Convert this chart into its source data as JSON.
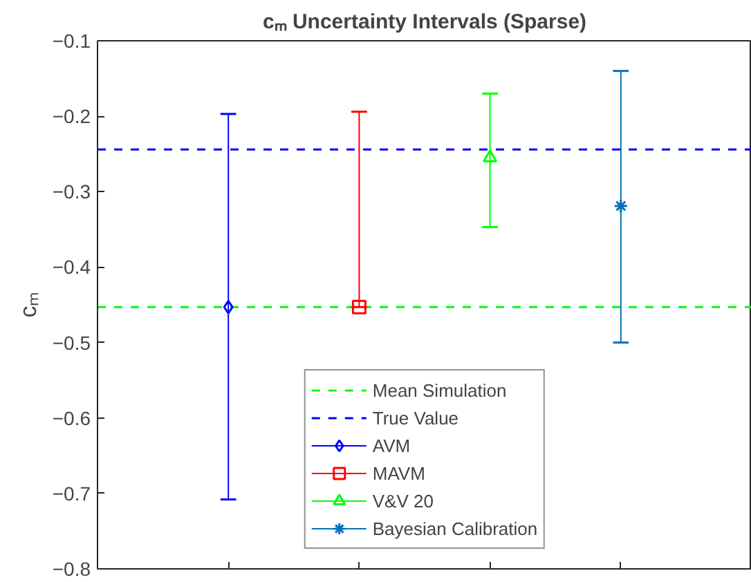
{
  "chart_data": {
    "type": "scatter",
    "title": "cₘ Uncertainty Intervals (Sparse)",
    "ylabel": "cₘ",
    "categories": [
      null,
      null,
      null,
      null
    ],
    "ylim": [
      -0.8,
      -0.1
    ],
    "yticks": [
      -0.8,
      -0.7,
      -0.6,
      -0.5,
      -0.4,
      -0.3,
      -0.2,
      -0.1
    ],
    "tick_labels": "y",
    "grid": false,
    "legend": "bottom",
    "ref_lines": [
      {
        "axis": "y",
        "value": -0.453,
        "label": "Mean Simulation",
        "color": "#00ff00",
        "line_style": "dashed"
      },
      {
        "axis": "y",
        "value": -0.244,
        "label": "True Value",
        "color": "#0000ff",
        "line_style": "dashed"
      }
    ],
    "series": [
      {
        "name": "AVM",
        "color": "#0000ff",
        "marker": "diamond",
        "values": [
          -0.453,
          null,
          null,
          null
        ],
        "errors": [
          [
            -0.708,
            -0.197
          ],
          null,
          null,
          null
        ]
      },
      {
        "name": "MAVM",
        "color": "#ff0000",
        "marker": "square",
        "values": [
          null,
          -0.453,
          null,
          null
        ],
        "errors": [
          null,
          [
            -0.453,
            -0.194
          ],
          null,
          null
        ]
      },
      {
        "name": "V&V 20",
        "color": "#00ff00",
        "marker": "triangle",
        "values": [
          null,
          null,
          -0.255,
          null
        ],
        "errors": [
          null,
          null,
          [
            -0.347,
            -0.17
          ],
          null
        ]
      },
      {
        "name": "Bayesian Calibration",
        "color": "#0072bd",
        "marker": "cross",
        "values": [
          null,
          null,
          null,
          -0.319
        ],
        "errors": [
          null,
          null,
          null,
          [
            -0.5,
            -0.14
          ]
        ]
      }
    ]
  }
}
